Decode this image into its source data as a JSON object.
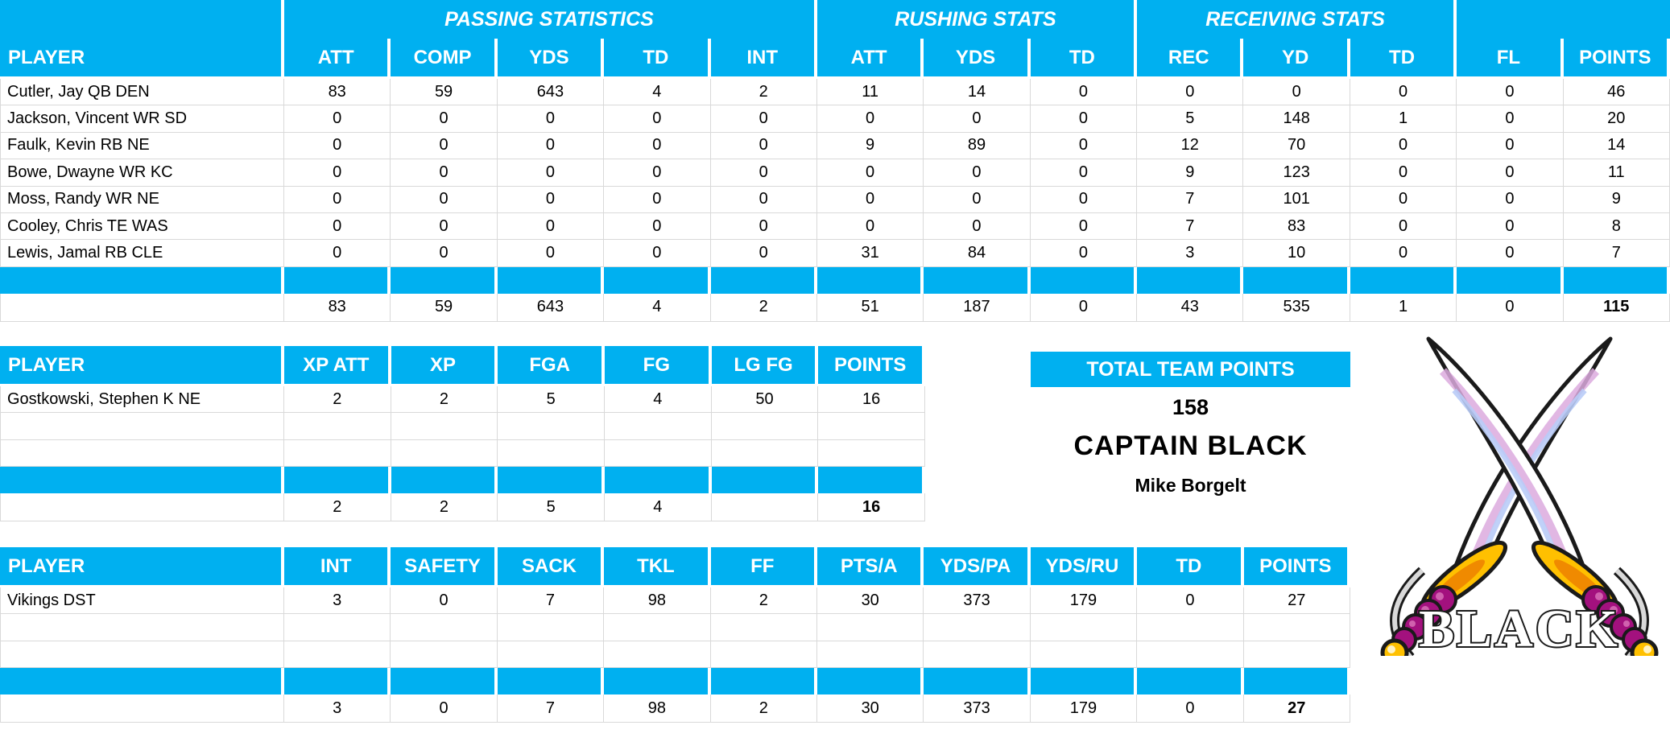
{
  "colors": {
    "header_blue": "#00B0F0",
    "grid_line": "#D9D9D9",
    "header_text": "#FFFFFF",
    "body_text": "#000000"
  },
  "offense_table": {
    "groups": [
      {
        "label": "",
        "span": 1
      },
      {
        "label": "PASSING STATISTICS",
        "span": 5
      },
      {
        "label": "RUSHING STATS",
        "span": 3
      },
      {
        "label": "RECEIVING STATS",
        "span": 3
      },
      {
        "label": "",
        "span": 2
      }
    ],
    "columns": [
      "PLAYER",
      "ATT",
      "COMP",
      "YDS",
      "TD",
      "INT",
      "ATT",
      "YDS",
      "TD",
      "REC",
      "YD",
      "TD",
      "FL",
      "POINTS"
    ],
    "rows": [
      {
        "player": "Cutler, Jay QB DEN",
        "values": [
          "83",
          "59",
          "643",
          "4",
          "2",
          "11",
          "14",
          "0",
          "0",
          "0",
          "0",
          "0",
          "46"
        ]
      },
      {
        "player": "Jackson, Vincent WR SD",
        "values": [
          "0",
          "0",
          "0",
          "0",
          "0",
          "0",
          "0",
          "0",
          "5",
          "148",
          "1",
          "0",
          "20"
        ]
      },
      {
        "player": "Faulk, Kevin RB NE",
        "values": [
          "0",
          "0",
          "0",
          "0",
          "0",
          "9",
          "89",
          "0",
          "12",
          "70",
          "0",
          "0",
          "14"
        ]
      },
      {
        "player": "Bowe, Dwayne WR KC",
        "values": [
          "0",
          "0",
          "0",
          "0",
          "0",
          "0",
          "0",
          "0",
          "9",
          "123",
          "0",
          "0",
          "11"
        ]
      },
      {
        "player": "Moss, Randy WR NE",
        "values": [
          "0",
          "0",
          "0",
          "0",
          "0",
          "0",
          "0",
          "0",
          "7",
          "101",
          "0",
          "0",
          "9"
        ]
      },
      {
        "player": "Cooley, Chris TE WAS",
        "values": [
          "0",
          "0",
          "0",
          "0",
          "0",
          "0",
          "0",
          "0",
          "7",
          "83",
          "0",
          "0",
          "8"
        ]
      },
      {
        "player": "Lewis, Jamal RB CLE",
        "values": [
          "0",
          "0",
          "0",
          "0",
          "0",
          "31",
          "84",
          "0",
          "3",
          "10",
          "0",
          "0",
          "7"
        ]
      }
    ],
    "empty_row_count": 0,
    "totals": [
      "83",
      "59",
      "643",
      "4",
      "2",
      "51",
      "187",
      "0",
      "43",
      "535",
      "1",
      "0",
      "115"
    ]
  },
  "kicker_table": {
    "columns": [
      "PLAYER",
      "XP ATT",
      "XP",
      "FGA",
      "FG",
      "LG FG",
      "POINTS"
    ],
    "rows": [
      {
        "player": "Gostkowski, Stephen K NE",
        "values": [
          "2",
          "2",
          "5",
          "4",
          "50",
          "16"
        ]
      }
    ],
    "empty_row_count": 2,
    "totals": [
      "2",
      "2",
      "5",
      "4",
      "",
      "16"
    ]
  },
  "defense_table": {
    "columns": [
      "PLAYER",
      "INT",
      "SAFETY",
      "SACK",
      "TKL",
      "FF",
      "PTS/A",
      "YDS/PA",
      "YDS/RU",
      "TD",
      "POINTS"
    ],
    "rows": [
      {
        "player": "Vikings DST",
        "values": [
          "3",
          "0",
          "7",
          "98",
          "2",
          "30",
          "373",
          "179",
          "0",
          "27"
        ]
      }
    ],
    "empty_row_count": 2,
    "totals": [
      "3",
      "0",
      "7",
      "98",
      "2",
      "30",
      "373",
      "179",
      "0",
      "27"
    ]
  },
  "team_summary": {
    "header": "TOTAL TEAM POINTS",
    "total_points": "158",
    "team_name": "CAPTAIN BLACK",
    "owner": "Mike Borgelt"
  },
  "logo": {
    "label": "BLACK"
  }
}
